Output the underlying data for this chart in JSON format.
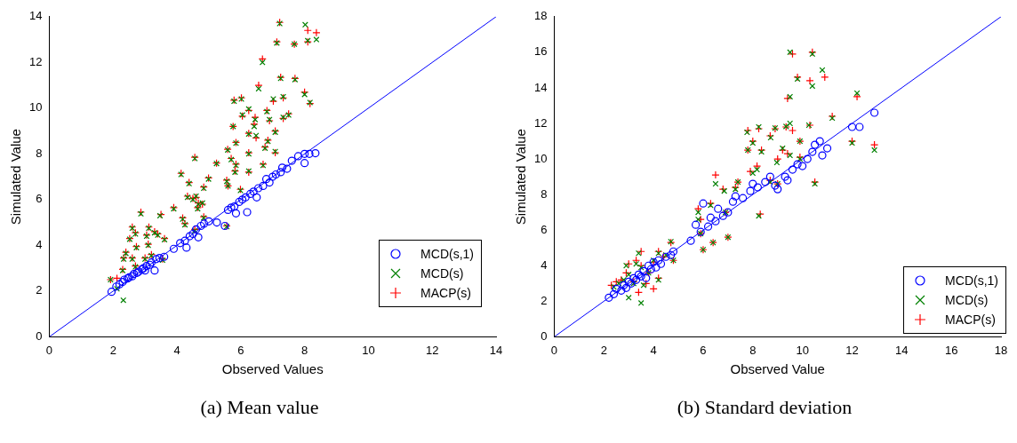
{
  "chart_data": [
    {
      "type": "scatter",
      "title": "(a) Mean value",
      "xlabel": "Observed Values",
      "ylabel": "Simulated Value",
      "xlim": [
        0,
        14
      ],
      "ylim": [
        0,
        14
      ],
      "xticks": [
        0,
        2,
        4,
        6,
        8,
        10,
        12,
        14
      ],
      "yticks": [
        0,
        2,
        4,
        6,
        8,
        10,
        12,
        14
      ],
      "legend": "right",
      "series": [
        {
          "name": "MCD(s,1)",
          "color": "#0000ff",
          "marker": "circle",
          "x": [
            1.95,
            2.1,
            2.2,
            2.3,
            2.35,
            2.45,
            2.5,
            2.6,
            2.65,
            2.75,
            2.8,
            2.9,
            2.95,
            3.0,
            3.05,
            3.15,
            3.2,
            3.3,
            3.35,
            3.45,
            3.6,
            3.9,
            4.1,
            4.25,
            4.3,
            4.4,
            4.5,
            4.6,
            4.67,
            4.75,
            4.85,
            5.0,
            5.25,
            5.5,
            5.6,
            5.7,
            5.8,
            5.85,
            5.95,
            6.05,
            6.15,
            6.2,
            6.3,
            6.4,
            6.5,
            6.55,
            6.7,
            6.8,
            6.9,
            7.0,
            7.1,
            7.25,
            7.3,
            7.45,
            7.6,
            7.8,
            8.0,
            8.0,
            8.15,
            8.34
          ],
          "values": [
            1.97,
            2.2,
            2.3,
            2.4,
            2.5,
            2.55,
            2.6,
            2.65,
            2.75,
            2.8,
            2.85,
            2.95,
            3.0,
            2.9,
            3.1,
            3.15,
            3.25,
            2.9,
            3.4,
            3.45,
            3.5,
            3.85,
            4.1,
            4.2,
            3.9,
            4.4,
            4.5,
            4.7,
            4.35,
            4.85,
            4.95,
            5.05,
            5.0,
            4.85,
            5.55,
            5.65,
            5.7,
            5.4,
            5.9,
            6.0,
            6.1,
            5.45,
            6.25,
            6.35,
            6.1,
            6.5,
            6.6,
            6.9,
            6.75,
            7.0,
            7.1,
            7.2,
            7.4,
            7.35,
            7.7,
            7.9,
            8.0,
            7.6,
            8.0,
            8.03
          ]
        },
        {
          "name": "MCD(s)",
          "color": "#008000",
          "marker": "x",
          "x": [
            7.22,
            8.02,
            8.37,
            8.1,
            7.13,
            7.68,
            6.68,
            7.25,
            7.7,
            6.56,
            5.79,
            6.02,
            7.02,
            7.33,
            8.0,
            8.17,
            6.25,
            6.05,
            6.45,
            6.82,
            6.9,
            7.33,
            7.5,
            6.42,
            7.08,
            5.76,
            6.25,
            6.48,
            5.85,
            6.85,
            6.76,
            7.08,
            5.59,
            6.25,
            4.56,
            5.24,
            5.7,
            5.85,
            6.7,
            5.82,
            6.25,
            4.13,
            4.38,
            4.99,
            5.56,
            5.6,
            5.99,
            4.84,
            4.33,
            4.5,
            4.6,
            4.67,
            4.8,
            3.9,
            2.87,
            3.47,
            4.65,
            4.18,
            4.25,
            4.84,
            4.56,
            5.56,
            2.6,
            2.7,
            2.52,
            3.12,
            3.3,
            3.4,
            3.61,
            3.05,
            3.1,
            2.73,
            2.4,
            2.33,
            2.6,
            3.2,
            3.0,
            3.55,
            2.7,
            2.3,
            2.12,
            1.92,
            2.32
          ],
          "values": [
            13.7,
            13.65,
            13.0,
            12.95,
            12.85,
            12.8,
            12.0,
            11.3,
            11.25,
            10.85,
            10.3,
            10.4,
            10.4,
            10.5,
            10.6,
            10.25,
            9.96,
            9.7,
            9.5,
            9.85,
            9.5,
            9.6,
            9.7,
            9.2,
            8.95,
            9.2,
            8.87,
            8.8,
            8.47,
            8.55,
            8.25,
            8.1,
            8.17,
            8.0,
            7.8,
            7.58,
            7.75,
            7.5,
            7.5,
            7.2,
            7.25,
            7.1,
            6.7,
            6.9,
            6.8,
            6.6,
            6.4,
            6.5,
            6.1,
            6.0,
            6.15,
            5.8,
            5.85,
            5.6,
            5.38,
            5.3,
            5.6,
            5.15,
            4.9,
            5.2,
            4.64,
            4.82,
            4.75,
            4.5,
            4.27,
            4.75,
            4.55,
            4.45,
            4.25,
            4.4,
            4.0,
            3.9,
            3.65,
            3.4,
            3.4,
            3.55,
            3.4,
            3.35,
            3.06,
            2.9,
            2.1,
            2.5,
            1.6
          ]
        },
        {
          "name": "MACP(s)",
          "color": "#ff0000",
          "marker": "cross",
          "x": [
            7.22,
            8.1,
            8.37,
            8.1,
            7.13,
            7.68,
            6.68,
            7.25,
            7.7,
            6.56,
            5.79,
            6.02,
            7.02,
            7.33,
            8.0,
            8.17,
            6.25,
            6.05,
            6.45,
            6.82,
            6.9,
            7.33,
            7.5,
            6.42,
            7.08,
            5.76,
            6.25,
            6.48,
            5.85,
            6.85,
            6.76,
            7.08,
            5.59,
            6.25,
            4.56,
            5.24,
            5.7,
            5.85,
            6.7,
            5.82,
            6.25,
            4.13,
            4.38,
            4.99,
            5.56,
            5.6,
            5.99,
            4.84,
            4.33,
            4.5,
            4.6,
            4.67,
            4.8,
            3.9,
            2.87,
            3.5,
            4.65,
            4.18,
            4.25,
            4.84,
            4.56,
            5.56,
            2.6,
            2.7,
            2.52,
            3.12,
            3.3,
            3.4,
            3.61,
            3.05,
            3.1,
            2.73,
            2.4,
            2.33,
            2.6,
            3.2,
            3.0,
            3.55,
            2.7,
            2.3,
            2.12,
            1.92
          ],
          "values": [
            13.75,
            13.4,
            13.3,
            12.9,
            12.9,
            12.8,
            12.15,
            11.35,
            11.3,
            11.0,
            10.35,
            10.45,
            10.3,
            10.45,
            10.7,
            10.2,
            9.9,
            9.65,
            9.6,
            9.9,
            9.45,
            9.55,
            9.75,
            9.3,
            9.0,
            9.2,
            8.9,
            8.7,
            8.5,
            8.6,
            8.3,
            8.05,
            8.2,
            8.05,
            7.85,
            7.6,
            7.8,
            7.55,
            7.55,
            7.25,
            7.2,
            7.15,
            6.75,
            6.95,
            6.85,
            6.6,
            6.45,
            6.55,
            6.15,
            6.05,
            6.1,
            5.85,
            5.8,
            5.65,
            5.45,
            5.35,
            5.65,
            5.2,
            4.95,
            5.25,
            4.7,
            4.85,
            4.8,
            4.55,
            4.3,
            4.8,
            4.6,
            4.5,
            4.3,
            4.45,
            4.05,
            3.95,
            3.7,
            3.45,
            3.45,
            3.6,
            3.45,
            3.4,
            3.1,
            2.95,
            2.56,
            2.5
          ]
        },
        {
          "type": "line",
          "color": "#0000ff",
          "x": [
            0,
            14
          ],
          "values": [
            0,
            14
          ]
        }
      ]
    },
    {
      "type": "scatter",
      "title": "(b) Standard deviation",
      "xlabel": "Observed Value",
      "ylabel": "Simulated Value",
      "xlim": [
        0,
        18
      ],
      "ylim": [
        0,
        18
      ],
      "xticks": [
        0,
        2,
        4,
        6,
        8,
        10,
        12,
        14,
        16,
        18
      ],
      "yticks": [
        0,
        2,
        4,
        6,
        8,
        10,
        12,
        14,
        16,
        18
      ],
      "legend": "bottom right",
      "series": [
        {
          "name": "MCD(s,1)",
          "color": "#0000ff",
          "marker": "circle",
          "x": [
            2.2,
            2.4,
            2.5,
            2.7,
            2.8,
            2.9,
            3.0,
            3.1,
            3.2,
            3.3,
            3.4,
            3.5,
            3.6,
            3.7,
            3.8,
            3.9,
            4.0,
            4.1,
            4.2,
            4.3,
            4.5,
            4.7,
            4.8,
            5.5,
            5.7,
            5.9,
            6.0,
            6.2,
            6.3,
            6.5,
            6.6,
            6.8,
            7.0,
            7.2,
            7.3,
            7.6,
            7.9,
            8.0,
            8.2,
            8.5,
            8.7,
            8.9,
            9.0,
            9.3,
            9.4,
            9.6,
            9.8,
            10.0,
            10.2,
            10.4,
            10.5,
            10.7,
            10.8,
            11.0,
            12.0,
            12.3,
            12.9
          ],
          "values": [
            2.2,
            2.4,
            2.7,
            2.6,
            2.9,
            2.75,
            3.1,
            3.0,
            3.3,
            3.2,
            3.5,
            3.4,
            3.7,
            3.3,
            4.0,
            3.8,
            4.2,
            3.9,
            4.3,
            4.1,
            4.5,
            4.6,
            4.8,
            5.4,
            6.3,
            5.9,
            7.5,
            6.2,
            6.7,
            6.5,
            7.2,
            6.8,
            7.0,
            7.6,
            7.9,
            7.8,
            8.2,
            8.6,
            8.4,
            8.7,
            9.0,
            8.5,
            8.3,
            9.0,
            8.8,
            9.4,
            9.7,
            9.6,
            10.0,
            10.4,
            10.8,
            11.0,
            10.2,
            10.6,
            11.8,
            11.8,
            12.6
          ]
        },
        {
          "name": "MCD(s)",
          "color": "#008000",
          "marker": "x",
          "x": [
            9.5,
            10.4,
            10.8,
            10.4,
            9.8,
            9.5,
            12.2,
            11.2,
            12.0,
            12.9,
            7.77,
            8.24,
            8.9,
            9.34,
            9.5,
            10.26,
            8.72,
            8.0,
            7.8,
            8.35,
            9.2,
            9.9,
            8.97,
            9.5,
            9.9,
            10.5,
            8.17,
            8.0,
            6.5,
            7.4,
            6.85,
            7.3,
            6.3,
            5.8,
            5.8,
            6.9,
            5.9,
            7.0,
            6.4,
            6.0,
            8.24,
            8.7,
            9.0,
            4.7,
            4.8,
            4.5,
            4.2,
            4.0,
            3.8,
            3.5,
            3.3,
            3.0,
            2.8,
            2.6,
            2.4,
            3.0,
            3.5,
            3.2,
            3.6,
            4.2,
            2.9,
            3.4
          ],
          "values": [
            16.0,
            15.9,
            15.0,
            14.1,
            14.5,
            13.5,
            13.7,
            12.3,
            10.9,
            10.5,
            11.5,
            11.8,
            11.74,
            11.83,
            12.0,
            11.9,
            11.2,
            10.9,
            10.5,
            10.4,
            10.6,
            11.0,
            9.8,
            10.2,
            10.0,
            8.6,
            9.4,
            9.2,
            8.6,
            8.7,
            8.2,
            8.3,
            7.4,
            7.0,
            6.6,
            7.0,
            5.8,
            5.6,
            5.3,
            4.9,
            6.8,
            8.7,
            8.6,
            5.35,
            4.3,
            4.6,
            4.7,
            4.3,
            3.6,
            3.9,
            4.1,
            3.5,
            3.2,
            3.0,
            2.8,
            2.2,
            1.9,
            3.0,
            2.9,
            3.2,
            4.0,
            4.7
          ]
        },
        {
          "name": "MACP(s)",
          "color": "#ff0000",
          "marker": "cross",
          "x": [
            9.6,
            10.4,
            10.9,
            10.3,
            9.8,
            9.4,
            12.2,
            11.2,
            12.0,
            12.9,
            7.8,
            8.24,
            8.9,
            9.34,
            9.6,
            10.3,
            8.7,
            8.0,
            7.8,
            8.35,
            9.2,
            9.9,
            9.0,
            9.4,
            9.9,
            10.5,
            8.17,
            7.9,
            6.5,
            7.4,
            6.8,
            7.3,
            6.3,
            5.8,
            5.9,
            6.9,
            5.9,
            7.0,
            6.4,
            6.0,
            8.3,
            8.7,
            9.0,
            4.7,
            4.8,
            4.4,
            4.2,
            4.0,
            3.8,
            3.5,
            3.3,
            2.9,
            2.7,
            2.5,
            2.3,
            3.4,
            4.0,
            3.2,
            3.7,
            4.2,
            3.0,
            3.5
          ],
          "values": [
            15.9,
            16.0,
            14.6,
            14.4,
            14.6,
            13.4,
            13.5,
            12.4,
            11.0,
            10.8,
            11.6,
            11.7,
            11.7,
            11.8,
            11.6,
            11.9,
            11.3,
            11.0,
            10.5,
            10.5,
            10.5,
            11.0,
            10.0,
            10.3,
            10.1,
            8.7,
            9.6,
            9.3,
            9.1,
            8.7,
            8.3,
            8.4,
            7.5,
            7.2,
            6.6,
            7.0,
            5.8,
            5.6,
            5.3,
            4.9,
            6.9,
            8.8,
            8.6,
            5.3,
            4.3,
            4.5,
            4.8,
            4.2,
            3.6,
            4.0,
            4.3,
            3.6,
            3.2,
            3.1,
            2.9,
            2.5,
            2.7,
            3.1,
            3.0,
            3.3,
            4.1,
            4.8
          ]
        },
        {
          "type": "line",
          "color": "#0000ff",
          "x": [
            0,
            18
          ],
          "values": [
            0,
            18
          ]
        }
      ]
    }
  ]
}
